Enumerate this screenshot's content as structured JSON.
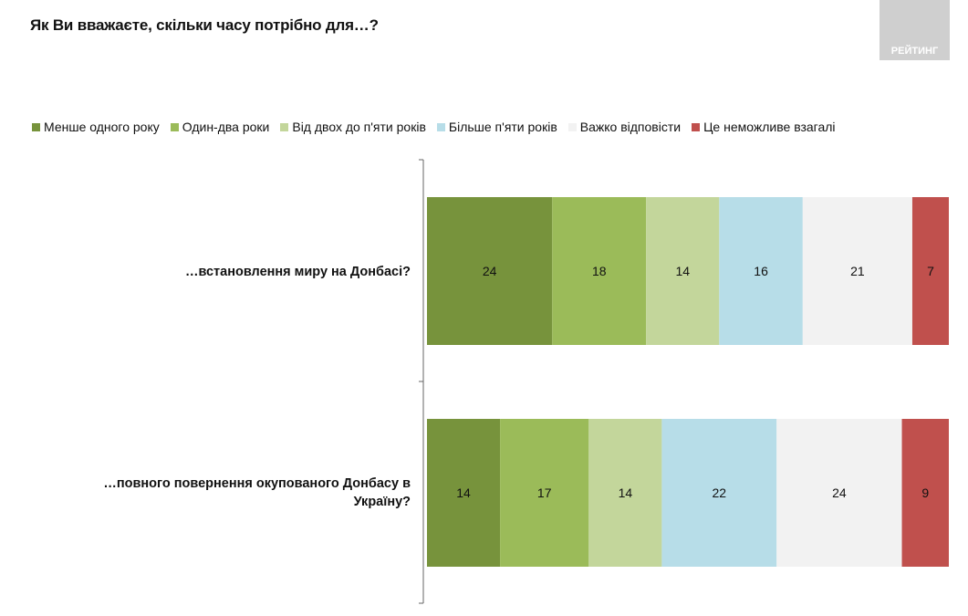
{
  "title": "Як Ви вважаєте, скільки часу потрібно для…?",
  "logo_text": "РЕЙТИНГ",
  "chart_data": {
    "type": "bar",
    "orientation": "horizontal",
    "stacked": true,
    "title": "Як Ви вважаєте, скільки часу потрібно для…?",
    "categories": [
      "…встановлення миру на Донбасі?",
      "…повного повернення окупованого Донбасу в Україну?"
    ],
    "series": [
      {
        "name": "Менше одного року",
        "color": "#77933c",
        "values": [
          24,
          14
        ]
      },
      {
        "name": "Один-два роки",
        "color": "#9bbb59",
        "values": [
          18,
          17
        ]
      },
      {
        "name": "Від двох до п'яти років",
        "color": "#c3d69b",
        "values": [
          14,
          14
        ]
      },
      {
        "name": "Більше п'яти років",
        "color": "#b7dde8",
        "values": [
          16,
          22
        ]
      },
      {
        "name": "Важко відповісти",
        "color": "#f2f2f2",
        "values": [
          21,
          24
        ]
      },
      {
        "name": "Це неможливе взагалі",
        "color": "#c0504d",
        "values": [
          7,
          9
        ]
      }
    ],
    "xlim": [
      0,
      100
    ],
    "legend": "top",
    "data_labels": true,
    "grid": false
  }
}
